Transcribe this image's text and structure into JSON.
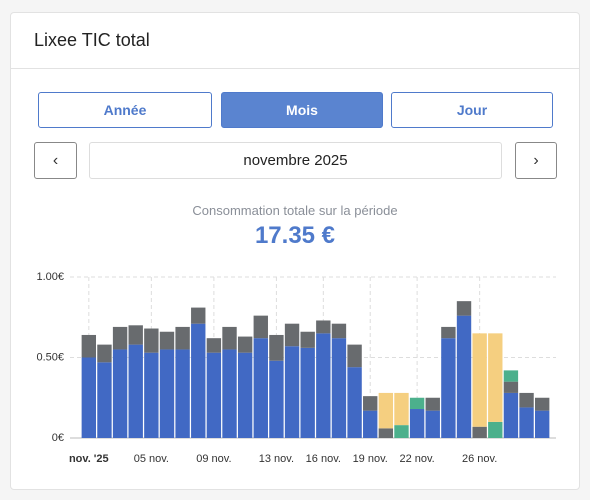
{
  "header": {
    "title": "Lixee TIC total"
  },
  "tabs": [
    {
      "label": "Année",
      "active": false
    },
    {
      "label": "Mois",
      "active": true
    },
    {
      "label": "Jour",
      "active": false
    }
  ],
  "period": "novembre 2025",
  "summary": {
    "label": "Consommation totale sur la période",
    "value": "17.35 €"
  },
  "chart_data": {
    "type": "stacked_bar",
    "categories": [
      "nov. '25",
      null,
      null,
      null,
      "05 nov.",
      null,
      null,
      null,
      "09 nov.",
      null,
      null,
      null,
      "13 nov.",
      null,
      null,
      "16 nov.",
      null,
      null,
      "19 nov.",
      null,
      null,
      "22 nov.",
      null,
      null,
      null,
      "26 nov.",
      null,
      null,
      null,
      null
    ],
    "series": [
      {
        "color": "#4169c4",
        "values": [
          0.5,
          0.47,
          0.55,
          0.58,
          0.53,
          0.55,
          0.55,
          0.71,
          0.53,
          0.55,
          0.53,
          0.62,
          0.48,
          0.57,
          0.56,
          0.65,
          0.62,
          0.44,
          0.17,
          null,
          null,
          0.18,
          0.17,
          0.62,
          0.76,
          null,
          null,
          0.28,
          0.19,
          0.17
        ]
      },
      {
        "color": "#686b6e",
        "values": [
          0.14,
          0.11,
          0.14,
          0.12,
          0.15,
          0.11,
          0.14,
          0.1,
          0.09,
          0.14,
          0.1,
          0.14,
          0.16,
          0.14,
          0.1,
          0.08,
          0.09,
          0.14,
          0.09,
          0.06,
          null,
          null,
          0.08,
          0.07,
          0.09,
          0.07,
          null,
          0.07,
          0.09,
          0.08
        ]
      },
      {
        "color": "#4cb08c",
        "values": [
          null,
          null,
          null,
          null,
          null,
          null,
          null,
          null,
          null,
          null,
          null,
          null,
          null,
          null,
          null,
          null,
          null,
          null,
          null,
          null,
          0.08,
          0.07,
          null,
          null,
          null,
          null,
          0.1,
          0.07,
          null,
          null
        ]
      },
      {
        "color": "#f5cf80",
        "values": [
          null,
          null,
          null,
          null,
          null,
          null,
          null,
          null,
          null,
          null,
          null,
          null,
          null,
          null,
          null,
          null,
          null,
          null,
          null,
          0.22,
          0.2,
          null,
          null,
          null,
          null,
          0.58,
          0.55,
          null,
          null,
          null
        ]
      }
    ],
    "ylim": [
      0,
      1.0
    ],
    "yticks": [
      {
        "value": 0,
        "label": "0€"
      },
      {
        "value": 0.5,
        "label": "0.50€"
      },
      {
        "value": 1.0,
        "label": "1.00€"
      }
    ],
    "grid": true
  }
}
